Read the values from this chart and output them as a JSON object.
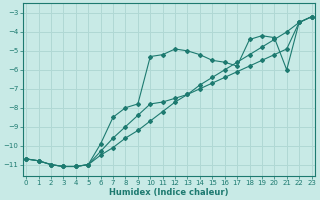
{
  "xlabel": "Humidex (Indice chaleur)",
  "xlim": [
    -0.3,
    23.3
  ],
  "ylim": [
    -11.6,
    -2.5
  ],
  "yticks": [
    -11,
    -10,
    -9,
    -8,
    -7,
    -6,
    -5,
    -4,
    -3
  ],
  "xticks": [
    0,
    1,
    2,
    3,
    4,
    5,
    6,
    7,
    8,
    9,
    10,
    11,
    12,
    13,
    14,
    15,
    16,
    17,
    18,
    19,
    20,
    21,
    22,
    23
  ],
  "bg_color": "#c8eae6",
  "line_color": "#1d7a70",
  "grid_color": "#b0d8d4",
  "lines": [
    {
      "x": [
        0,
        1,
        2,
        3,
        4,
        5,
        6,
        7,
        8,
        9,
        10,
        11,
        12,
        13,
        14,
        15,
        16,
        17,
        18,
        19,
        20,
        21,
        22,
        23
      ],
      "y": [
        -10.7,
        -10.8,
        -11.0,
        -11.1,
        -11.1,
        -11.0,
        -10.5,
        -10.1,
        -9.6,
        -9.2,
        -8.7,
        -8.2,
        -7.7,
        -7.3,
        -6.8,
        -6.4,
        -6.0,
        -5.6,
        -5.2,
        -4.8,
        -4.4,
        -4.0,
        -3.5,
        -3.2
      ]
    },
    {
      "x": [
        0,
        1,
        2,
        3,
        4,
        5,
        6,
        7,
        8,
        9,
        10,
        11,
        12,
        13,
        14,
        15,
        16,
        17,
        18,
        19,
        20,
        21,
        22,
        23
      ],
      "y": [
        -10.7,
        -10.8,
        -11.0,
        -11.1,
        -11.1,
        -11.0,
        -10.3,
        -9.6,
        -9.0,
        -8.4,
        -7.8,
        -7.7,
        -7.5,
        -7.3,
        -7.0,
        -6.7,
        -6.4,
        -6.1,
        -5.8,
        -5.5,
        -5.2,
        -4.9,
        -3.5,
        -3.2
      ]
    },
    {
      "x": [
        0,
        1,
        2,
        3,
        4,
        5,
        6,
        7,
        8,
        9,
        10,
        11,
        12,
        13,
        14,
        15,
        16,
        17,
        18,
        19,
        20,
        21,
        22,
        23
      ],
      "y": [
        -10.7,
        -10.8,
        -11.0,
        -11.1,
        -11.1,
        -11.0,
        -9.9,
        -8.5,
        -8.0,
        -7.8,
        -5.3,
        -5.2,
        -4.9,
        -5.0,
        -5.2,
        -5.5,
        -5.6,
        -5.8,
        -4.4,
        -4.2,
        -4.3,
        -6.0,
        -3.5,
        -3.2
      ]
    }
  ]
}
